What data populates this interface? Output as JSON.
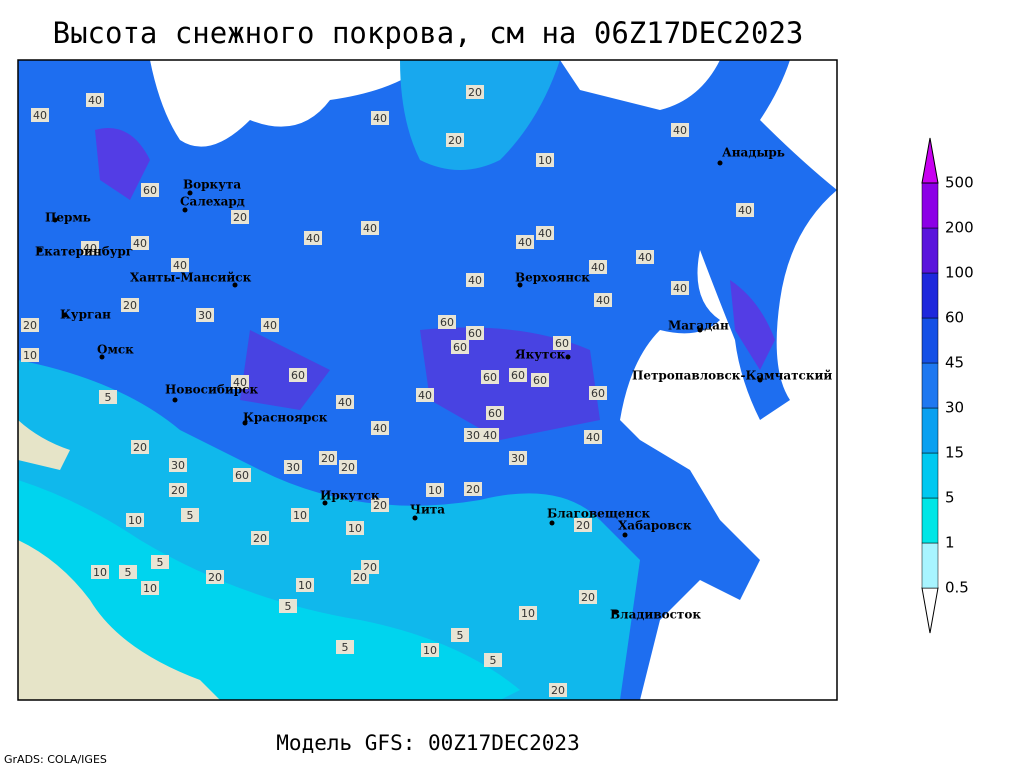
{
  "title": "Высота снежного покрова, см на 06Z17DEC2023",
  "footer": "Модель GFS: 00Z17DEC2023",
  "credit": "GrADS: COLA/IGES",
  "cities": [
    "Воркута",
    "Салехард",
    "Пермь",
    "Екатеринбург",
    "Ханты-Мансийск",
    "Курган",
    "Омск",
    "Новосибирск",
    "Красноярск",
    "Иркутск",
    "Чита",
    "Благовещенск",
    "Хабаровск",
    "Владивосток",
    "Якутск",
    "Верхоянск",
    "Магадан",
    "Петропавловск-Камчатский",
    "Анадырь"
  ],
  "contour_labels": [
    40,
    40,
    20,
    20,
    10,
    40,
    40,
    60,
    40,
    40,
    40,
    40,
    40,
    40,
    40,
    40,
    40,
    40,
    40,
    40,
    20,
    20,
    30,
    40,
    60,
    60,
    60,
    60,
    60,
    60,
    60,
    60,
    40,
    40,
    40,
    60,
    60,
    40,
    40,
    30,
    40,
    20,
    30,
    60,
    20,
    20,
    30,
    30,
    20,
    10,
    20,
    20,
    10,
    5,
    10,
    10,
    20,
    20,
    10,
    5,
    5,
    10,
    20,
    20,
    10,
    5,
    10,
    20,
    5,
    10,
    5,
    5,
    20,
    5,
    10,
    20,
    20,
    40
  ],
  "legend": {
    "levels": [
      0.5,
      1,
      5,
      15,
      30,
      45,
      60,
      100,
      200,
      500
    ],
    "colors": [
      "#ffffff",
      "#a8f4ff",
      "#00e6e6",
      "#00c8f0",
      "#0aa0f0",
      "#1e78f0",
      "#1450e6",
      "#1e28dc",
      "#5a14dc",
      "#8c00e6",
      "#c800f0"
    ]
  }
}
